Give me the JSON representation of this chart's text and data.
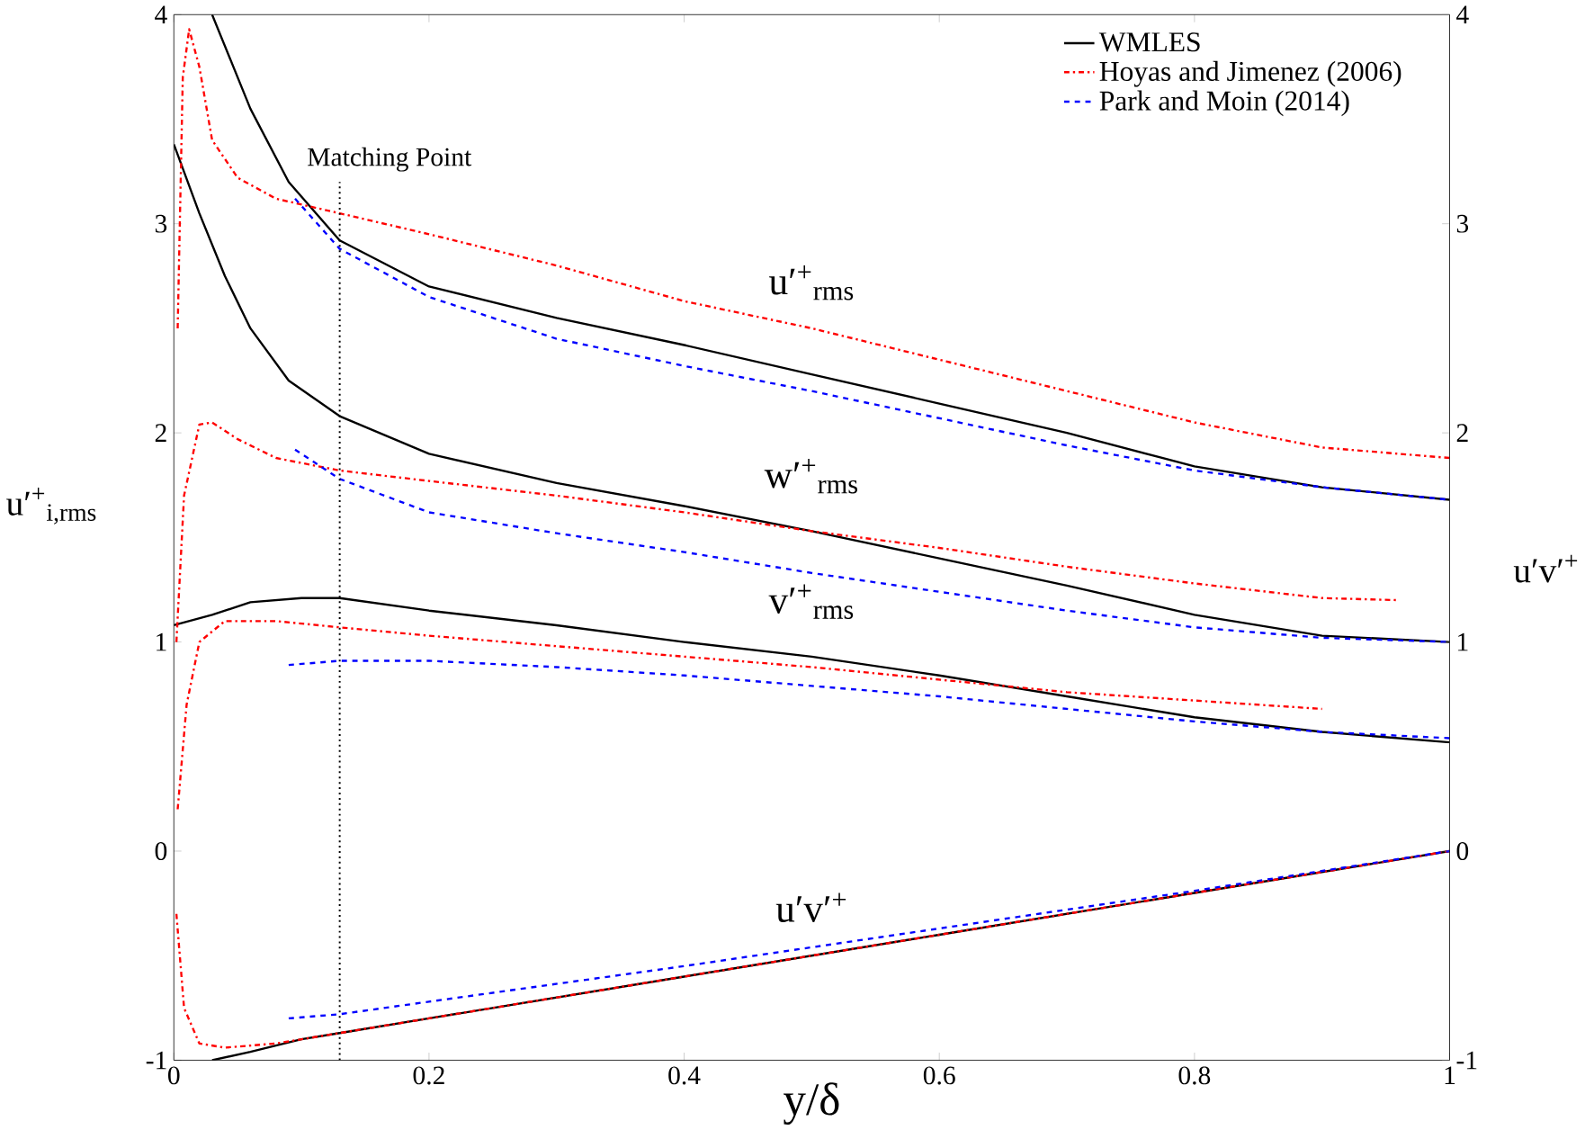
{
  "chart_data": {
    "type": "line",
    "xlabel": "y/δ",
    "ylabel": "u′$^{+}$$_{i,rms}$",
    "y2label": "u′v′$^{+}$",
    "xlim": [
      0,
      1
    ],
    "xticks": [
      0,
      0.2,
      0.4,
      0.6,
      0.8,
      1
    ],
    "ylim": [
      -1,
      4
    ],
    "yticks": [
      -1,
      0,
      1,
      2,
      3,
      4
    ],
    "y2lim": [
      -1,
      4
    ],
    "y2ticks": [
      -1,
      0,
      1,
      2,
      3,
      4
    ],
    "legend": "top right",
    "ref_lines": [
      {
        "axis": "x",
        "value": 0.13,
        "label": "Matching Point",
        "color": "#000000",
        "line_style": "dotted"
      }
    ],
    "annotations": [
      "u′$^{+}$$_{rms}$",
      "w′$^{+}$$_{rms}$",
      "v′$^{+}$$_{rms}$",
      "u′v′$^{+}$"
    ],
    "series": [
      {
        "name": "WMLES",
        "color": "#000000",
        "line_style": "solid",
        "x": [
          0.03,
          0.06,
          0.09,
          0.13,
          0.2,
          0.3,
          0.4,
          0.5,
          0.6,
          0.7,
          0.8,
          0.9,
          1
        ],
        "values": [
          4.0,
          3.55,
          3.2,
          2.92,
          2.7,
          2.55,
          2.42,
          2.28,
          2.14,
          2.0,
          1.84,
          1.74,
          1.68
        ]
      },
      {
        "color": "#000000",
        "line_style": "solid",
        "x": [
          0,
          0.02,
          0.04,
          0.06,
          0.09,
          0.13,
          0.2,
          0.3,
          0.4,
          0.5,
          0.6,
          0.7,
          0.8,
          0.9,
          1
        ],
        "values": [
          3.38,
          3.05,
          2.75,
          2.5,
          2.25,
          2.08,
          1.9,
          1.76,
          1.65,
          1.53,
          1.4,
          1.27,
          1.13,
          1.03,
          1.0
        ]
      },
      {
        "color": "#000000",
        "line_style": "solid",
        "x": [
          0,
          0.03,
          0.06,
          0.1,
          0.13,
          0.2,
          0.3,
          0.4,
          0.5,
          0.6,
          0.7,
          0.8,
          0.9,
          1
        ],
        "values": [
          1.08,
          1.13,
          1.19,
          1.21,
          1.21,
          1.15,
          1.08,
          1.0,
          0.93,
          0.84,
          0.74,
          0.64,
          0.57,
          0.52
        ]
      },
      {
        "color": "#000000",
        "line_style": "solid",
        "x": [
          0.03,
          0.06,
          0.1,
          0.13,
          0.2,
          0.4,
          0.6,
          0.8,
          1
        ],
        "values": [
          -1.0,
          -0.96,
          -0.9,
          -0.87,
          -0.8,
          -0.6,
          -0.4,
          -0.2,
          0
        ]
      },
      {
        "name": "Hoyas and Jimenez (2006)",
        "color": "#ff0000",
        "line_style": "dashdot",
        "x": [
          0.003,
          0.007,
          0.012,
          0.02,
          0.03,
          0.05,
          0.08,
          0.13,
          0.2,
          0.3,
          0.4,
          0.5,
          0.6,
          0.7,
          0.8,
          0.9,
          1
        ],
        "values": [
          2.5,
          3.7,
          3.93,
          3.75,
          3.4,
          3.22,
          3.12,
          3.05,
          2.95,
          2.8,
          2.63,
          2.5,
          2.35,
          2.2,
          2.05,
          1.93,
          1.88
        ]
      },
      {
        "color": "#ff0000",
        "line_style": "dashdot",
        "x": [
          0.002,
          0.008,
          0.02,
          0.03,
          0.05,
          0.08,
          0.13,
          0.2,
          0.3,
          0.4,
          0.5,
          0.6,
          0.7,
          0.8,
          0.9,
          0.96
        ],
        "values": [
          1.0,
          1.7,
          2.04,
          2.05,
          1.97,
          1.88,
          1.82,
          1.77,
          1.7,
          1.62,
          1.53,
          1.45,
          1.36,
          1.28,
          1.21,
          1.2
        ]
      },
      {
        "color": "#ff0000",
        "line_style": "dashdot",
        "x": [
          0.003,
          0.01,
          0.02,
          0.04,
          0.08,
          0.13,
          0.2,
          0.3,
          0.4,
          0.5,
          0.6,
          0.7,
          0.8,
          0.9
        ],
        "values": [
          0.2,
          0.7,
          1.0,
          1.1,
          1.1,
          1.07,
          1.03,
          0.98,
          0.93,
          0.88,
          0.82,
          0.76,
          0.72,
          0.68
        ]
      },
      {
        "color": "#ff0000",
        "line_style": "dashdot",
        "x": [
          0.002,
          0.008,
          0.02,
          0.04,
          0.08,
          0.13,
          0.2,
          0.4,
          0.6,
          0.8,
          1
        ],
        "values": [
          -0.3,
          -0.75,
          -0.92,
          -0.94,
          -0.92,
          -0.87,
          -0.8,
          -0.6,
          -0.4,
          -0.2,
          0
        ]
      },
      {
        "name": "Park and Moin (2014)",
        "color": "#0000ff",
        "line_style": "dashed",
        "x": [
          0.095,
          0.13,
          0.2,
          0.3,
          0.4,
          0.5,
          0.6,
          0.7,
          0.8,
          0.9,
          1
        ],
        "values": [
          3.12,
          2.88,
          2.65,
          2.45,
          2.32,
          2.2,
          2.07,
          1.94,
          1.82,
          1.74,
          1.68
        ]
      },
      {
        "color": "#0000ff",
        "line_style": "dashed",
        "x": [
          0.095,
          0.13,
          0.2,
          0.3,
          0.4,
          0.5,
          0.6,
          0.7,
          0.8,
          0.9,
          1
        ],
        "values": [
          1.92,
          1.78,
          1.62,
          1.52,
          1.43,
          1.33,
          1.24,
          1.15,
          1.07,
          1.02,
          1.0
        ]
      },
      {
        "color": "#0000ff",
        "line_style": "dashed",
        "x": [
          0.09,
          0.13,
          0.2,
          0.3,
          0.4,
          0.5,
          0.6,
          0.7,
          0.8,
          0.9,
          1
        ],
        "values": [
          0.89,
          0.91,
          0.91,
          0.88,
          0.84,
          0.79,
          0.74,
          0.68,
          0.62,
          0.57,
          0.54
        ]
      },
      {
        "color": "#0000ff",
        "line_style": "dashed",
        "x": [
          0.09,
          0.13,
          0.2,
          0.4,
          0.6,
          0.8,
          1
        ],
        "values": [
          -0.8,
          -0.78,
          -0.72,
          -0.55,
          -0.37,
          -0.19,
          0
        ]
      }
    ]
  }
}
